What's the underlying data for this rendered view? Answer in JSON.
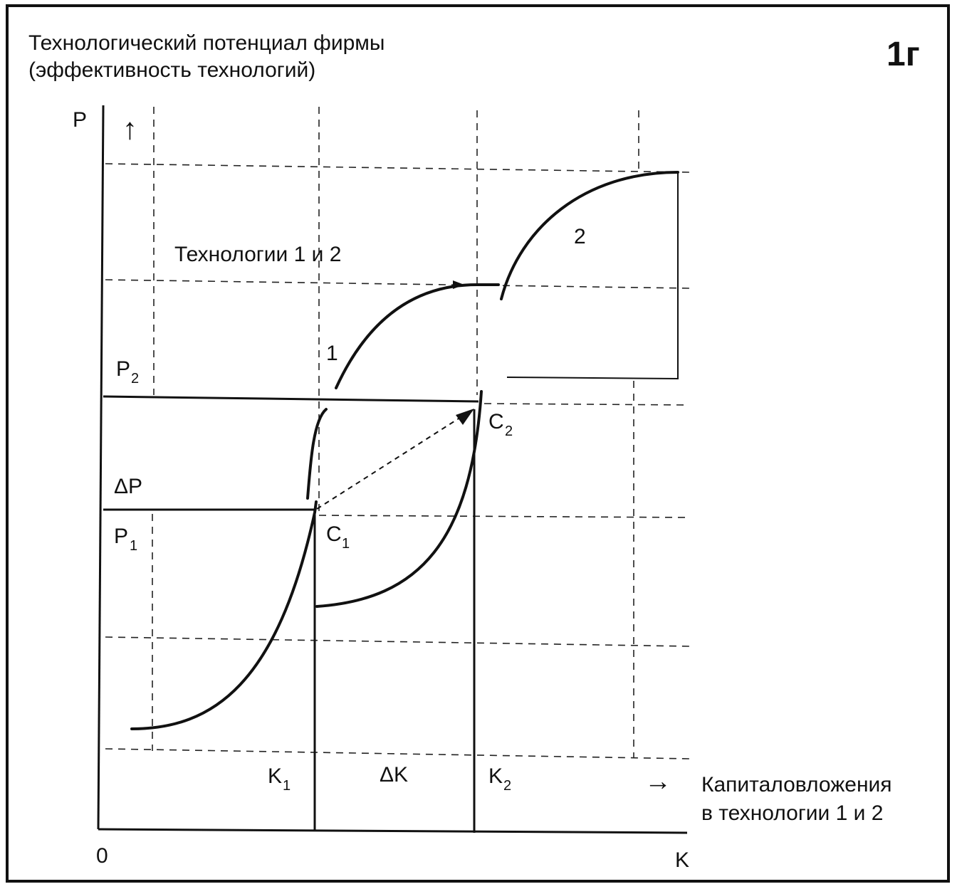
{
  "header": {
    "title_line1": "Технологический потенциал фирмы",
    "title_line2": "(эффективность технологий)",
    "figure_number": "1г"
  },
  "axes": {
    "y_label": "P",
    "y_arrow": "↑",
    "x_label": "K",
    "origin": "0",
    "x_caption_arrow": "→",
    "x_caption_line1": "Капиталовложения",
    "x_caption_line2": "в технологии 1 и 2"
  },
  "labels": {
    "technologies": "Технологии 1 и 2",
    "curve1": "1",
    "curve2": "2",
    "p2_main": "P",
    "p2_sub": "2",
    "p1_main": "P",
    "p1_sub": "1",
    "delta_p": "ΔP",
    "c1_main": "C",
    "c1_sub": "1",
    "c2_main": "C",
    "c2_sub": "2",
    "k1_main": "K",
    "k1_sub": "1",
    "k2_main": "K",
    "k2_sub": "2",
    "delta_k": "ΔK"
  }
}
